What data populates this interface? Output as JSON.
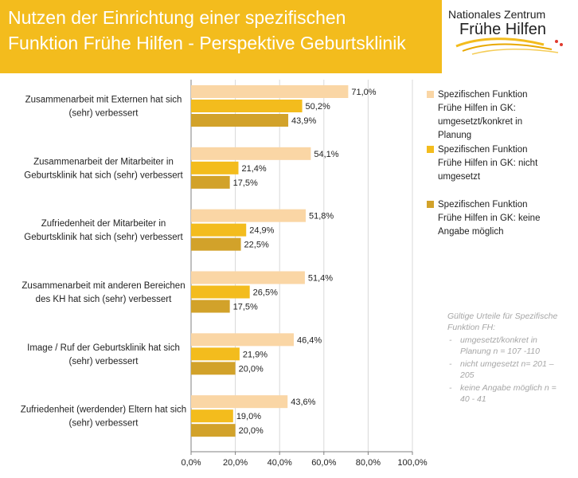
{
  "header": {
    "title_line1": "Nutzen der Einrichtung einer spezifischen",
    "title_line2": "Funktion Frühe Hilfen - Perspektive Geburtsklinik"
  },
  "logo": {
    "line1": "Nationales Zentrum",
    "line2": "Frühe Hilfen"
  },
  "colors": {
    "header_bg": "#f3bc1d",
    "series1": "#fad6a5",
    "series2": "#f3bc1d",
    "series3": "#d2a22a"
  },
  "note": {
    "heading": "Gültige Urteile für Spezifische Funktion FH:",
    "items": [
      "umgesetzt/konkret in Planung n = 107 -110",
      "nicht umgesetzt n= 201 – 205",
      "keine Angabe möglich n = 40 - 41"
    ]
  },
  "chart_data": {
    "type": "bar",
    "orientation": "horizontal",
    "categories": [
      "Zusammenarbeit mit Externen hat sich (sehr) verbessert",
      "Zusammenarbeit der Mitarbeiter in Geburtsklinik hat sich (sehr) verbessert",
      "Zufriedenheit der Mitarbeiter in Geburtsklinik hat sich (sehr) verbessert",
      "Zusammenarbeit mit anderen Bereichen des KH hat sich (sehr) verbessert",
      "Image / Ruf der Geburtsklinik hat sich (sehr) verbessert",
      "Zufriedenheit (werdender) Eltern hat sich (sehr) verbessert"
    ],
    "category_lines": [
      [
        "Zusammenarbeit mit Externen hat sich",
        "(sehr) verbessert"
      ],
      [
        "Zusammenarbeit der Mitarbeiter in",
        "Geburtsklinik hat sich (sehr) verbessert"
      ],
      [
        "Zufriedenheit der Mitarbeiter in",
        "Geburtsklinik hat sich (sehr) verbessert"
      ],
      [
        "Zusammenarbeit mit anderen Bereichen",
        "des KH hat sich (sehr) verbessert"
      ],
      [
        "Image / Ruf der Geburtsklinik hat sich",
        "(sehr) verbessert"
      ],
      [
        "Zufriedenheit (werdender) Eltern hat sich",
        "(sehr) verbessert"
      ]
    ],
    "series": [
      {
        "name": "Spezifischen Funktion Frühe Hilfen in GK: umgesetzt/konkret in Planung",
        "color": "#fad6a5",
        "values": [
          71.0,
          54.1,
          51.8,
          51.4,
          46.4,
          43.6
        ],
        "labels": [
          "71,0%",
          "54,1%",
          "51,8%",
          "51,4%",
          "46,4%",
          "43,6%"
        ]
      },
      {
        "name": "Spezifischen Funktion Frühe Hilfen in GK: nicht umgesetzt",
        "color": "#f3bc1d",
        "values": [
          50.2,
          21.4,
          24.9,
          26.5,
          21.9,
          19.0
        ],
        "labels": [
          "50,2%",
          "21,4%",
          "24,9%",
          "26,5%",
          "21,9%",
          "19,0%"
        ]
      },
      {
        "name": "Spezifischen Funktion Frühe Hilfen in GK: keine Angabe möglich",
        "color": "#d2a22a",
        "values": [
          43.9,
          17.5,
          22.5,
          17.5,
          20.0,
          20.0
        ],
        "labels": [
          "43,9%",
          "17,5%",
          "22,5%",
          "17,5%",
          "20,0%",
          "20,0%"
        ]
      }
    ],
    "legend_lines": [
      [
        "Spezifischen Funktion",
        "Frühe Hilfen in GK:",
        "umgesetzt/konkret in",
        "Planung"
      ],
      [
        "Spezifischen Funktion",
        "Frühe Hilfen in GK:  nicht",
        "umgesetzt"
      ],
      [
        "Spezifischen Funktion",
        "Frühe Hilfen in GK:  keine",
        "Angabe möglich"
      ]
    ],
    "xlim": [
      0,
      100
    ],
    "xticks": [
      0,
      20,
      40,
      60,
      80,
      100
    ],
    "xtick_labels": [
      "0,0%",
      "20,0%",
      "40,0%",
      "60,0%",
      "80,0%",
      "100,0%"
    ],
    "grid": true,
    "legend_position": "right"
  }
}
